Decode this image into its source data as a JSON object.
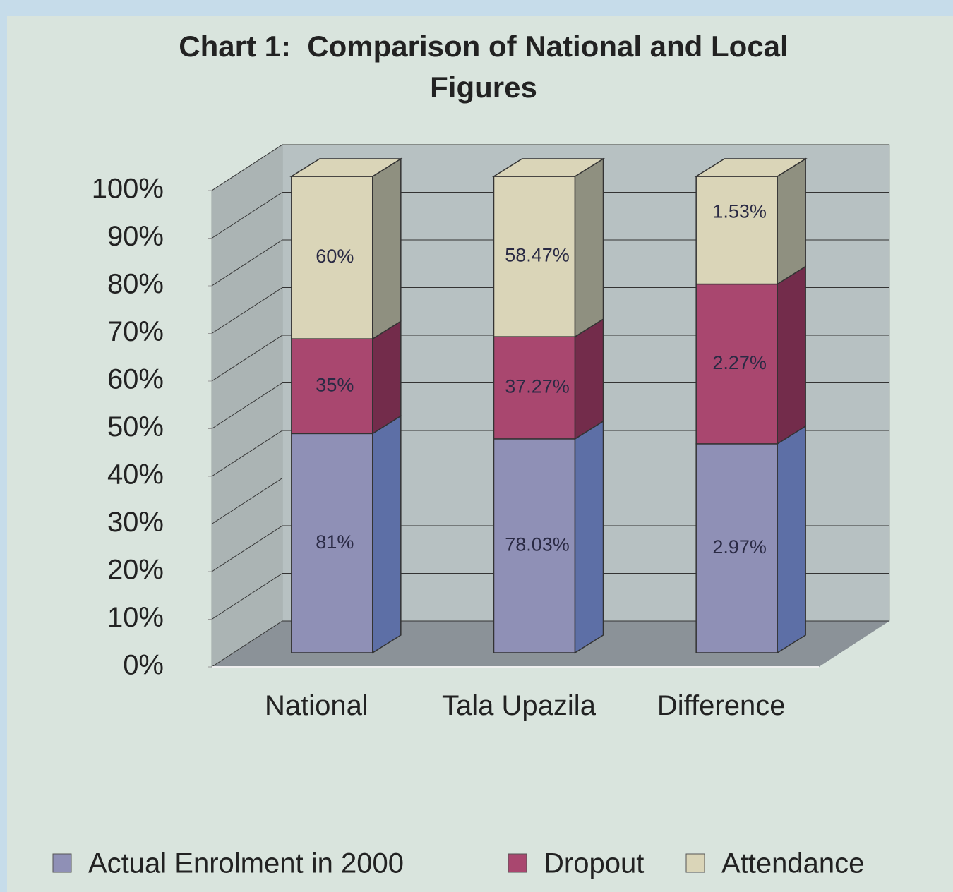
{
  "chart_data": {
    "type": "bar",
    "stacking": "percent",
    "title": "Chart 1:  Comparison of National and Local Figures",
    "categories": [
      "National",
      "Tala Upazila",
      "Difference"
    ],
    "series": [
      {
        "name": "Actual Enrolment in 2000",
        "color": "#8f90b6",
        "side_color": "#5d6fa6",
        "values": [
          81,
          78.03,
          2.97
        ],
        "value_labels": [
          "81%",
          "78.03%",
          "2.97%"
        ]
      },
      {
        "name": "Dropout",
        "color": "#a9476f",
        "side_color": "#732c4b",
        "values": [
          35,
          37.27,
          2.27
        ],
        "value_labels": [
          "35%",
          "37.27%",
          "2.27%"
        ]
      },
      {
        "name": "Attendance",
        "color": "#dad5b8",
        "side_color": "#8f9080",
        "values": [
          60,
          58.47,
          1.53
        ],
        "value_labels": [
          "60%",
          "58.47%",
          "1.53%"
        ]
      }
    ],
    "ylim": [
      0,
      100
    ],
    "yticks": [
      {
        "value": 0,
        "label": "0%"
      },
      {
        "value": 10,
        "label": "10%"
      },
      {
        "value": 20,
        "label": "20%"
      },
      {
        "value": 30,
        "label": "30%"
      },
      {
        "value": 40,
        "label": "40%"
      },
      {
        "value": 50,
        "label": "50%"
      },
      {
        "value": 60,
        "label": "60%"
      },
      {
        "value": 70,
        "label": "70%"
      },
      {
        "value": 80,
        "label": "80%"
      },
      {
        "value": 90,
        "label": "90%"
      },
      {
        "value": 100,
        "label": "100%"
      }
    ],
    "grid": true,
    "legend": "bottom"
  }
}
